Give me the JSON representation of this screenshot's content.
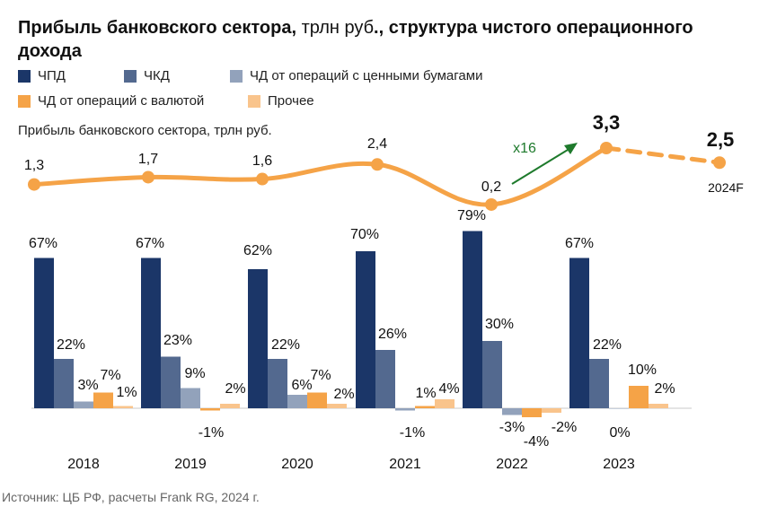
{
  "title": {
    "bold_1": "Прибыль банковского сектора,",
    "normal": " трлн руб",
    "bold_2": "., структура чистого операционного дохода"
  },
  "legend": [
    {
      "label": "ЧПД",
      "color": "#1b3668"
    },
    {
      "label": "ЧКД",
      "color": "#53698f"
    },
    {
      "label": "ЧД от операций с ценными бумагами",
      "color": "#92a2bb"
    },
    {
      "label": "ЧД от операций с валютой",
      "color": "#f5a347"
    },
    {
      "label": "Прочее",
      "color": "#f9c48c"
    }
  ],
  "subtitle": "Прибыль банковского сектора, трлн руб.",
  "source": "Источник: ЦБ РФ, расчеты Frank RG, 2024 г.",
  "chart_data": [
    {
      "type": "line",
      "x": [
        "2018",
        "2019",
        "2020",
        "2021",
        "2022",
        "2023",
        "2024F"
      ],
      "values": [
        1.3,
        1.7,
        1.6,
        2.4,
        0.2,
        3.3,
        2.5
      ],
      "labels": [
        "1,3",
        "1,7",
        "1,6",
        "2,4",
        "0,2",
        "3,3",
        "2,5"
      ],
      "forecast_from_index": 5,
      "annotation": "x16",
      "color": "#f5a347"
    },
    {
      "type": "bar",
      "categories": [
        "2018",
        "2019",
        "2020",
        "2021",
        "2022",
        "2023"
      ],
      "series": [
        {
          "name": "ЧПД",
          "values": [
            67,
            67,
            62,
            70,
            79,
            67
          ]
        },
        {
          "name": "ЧКД",
          "values": [
            22,
            23,
            22,
            26,
            30,
            22
          ]
        },
        {
          "name": "ЧД от операций с ценными бумагами",
          "values": [
            3,
            9,
            6,
            -1,
            -3,
            0
          ]
        },
        {
          "name": "ЧД от операций с валютой",
          "values": [
            7,
            -1,
            7,
            1,
            -4,
            10
          ]
        },
        {
          "name": "Прочее",
          "values": [
            1,
            2,
            2,
            4,
            -2,
            2
          ]
        }
      ],
      "labels": [
        [
          "67%",
          "67%",
          "62%",
          "70%",
          "79%",
          "67%"
        ],
        [
          "22%",
          "23%",
          "22%",
          "26%",
          "30%",
          "22%"
        ],
        [
          "3%",
          "9%",
          "6%",
          "-1%",
          "-3%",
          "0%"
        ],
        [
          "7%",
          "-1%",
          "7%",
          "1%",
          "-4%",
          "10%"
        ],
        [
          "1%",
          "2%",
          "2%",
          "4%",
          "-2%",
          "2%"
        ]
      ]
    }
  ]
}
